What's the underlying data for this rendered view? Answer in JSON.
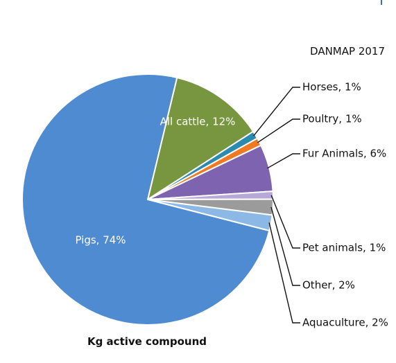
{
  "chart_data": {
    "type": "pie",
    "title": "DANMAP 2017",
    "caption": "Kg active compound",
    "slices": [
      {
        "label": "All cattle",
        "value": 12,
        "display": "All cattle, 12%",
        "color": "#77963f",
        "label_inside": true
      },
      {
        "label": "Horses",
        "value": 1,
        "display": "Horses, 1%",
        "color": "#2a8ab0",
        "label_inside": false
      },
      {
        "label": "Poultry",
        "value": 1,
        "display": "Poultry, 1%",
        "color": "#f07a22",
        "label_inside": false
      },
      {
        "label": "Fur Animals",
        "value": 6,
        "display": "Fur Animals, 6%",
        "color": "#7e63b0",
        "label_inside": false
      },
      {
        "label": "Pet animals",
        "value": 1,
        "display": "Pet animals, 1%",
        "color": "#b8a8d8",
        "label_inside": false
      },
      {
        "label": "Other",
        "value": 2,
        "display": "Other, 2%",
        "color": "#9b9b9b",
        "label_inside": false
      },
      {
        "label": "Aquaculture",
        "value": 2,
        "display": "Aquaculture, 2%",
        "color": "#8cb8e6",
        "label_inside": false
      },
      {
        "label": "Pigs",
        "value": 74,
        "display": "Pigs, 74%",
        "color": "#4f8bd0",
        "label_inside": true
      }
    ]
  }
}
